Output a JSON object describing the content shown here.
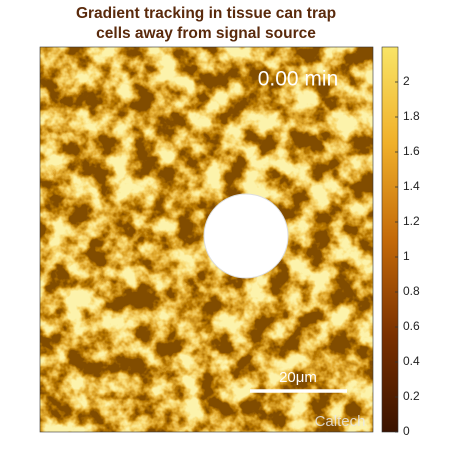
{
  "chart_data": {
    "type": "heatmap",
    "title": [
      "Gradient tracking in tissue can trap",
      "cells away from signal source"
    ],
    "time_label": "0.00 min",
    "scale_bar_label": "20μm",
    "watermark": "Caltech",
    "colormap": [
      "#3a1300",
      "#7a3000",
      "#c46a08",
      "#f0b02a",
      "#f8e466"
    ],
    "clim": [
      0,
      2.2
    ],
    "cticks": [
      0,
      0.2,
      0.4,
      0.6,
      0.8,
      1,
      1.2,
      1.4,
      1.6,
      1.8,
      2
    ]
  }
}
